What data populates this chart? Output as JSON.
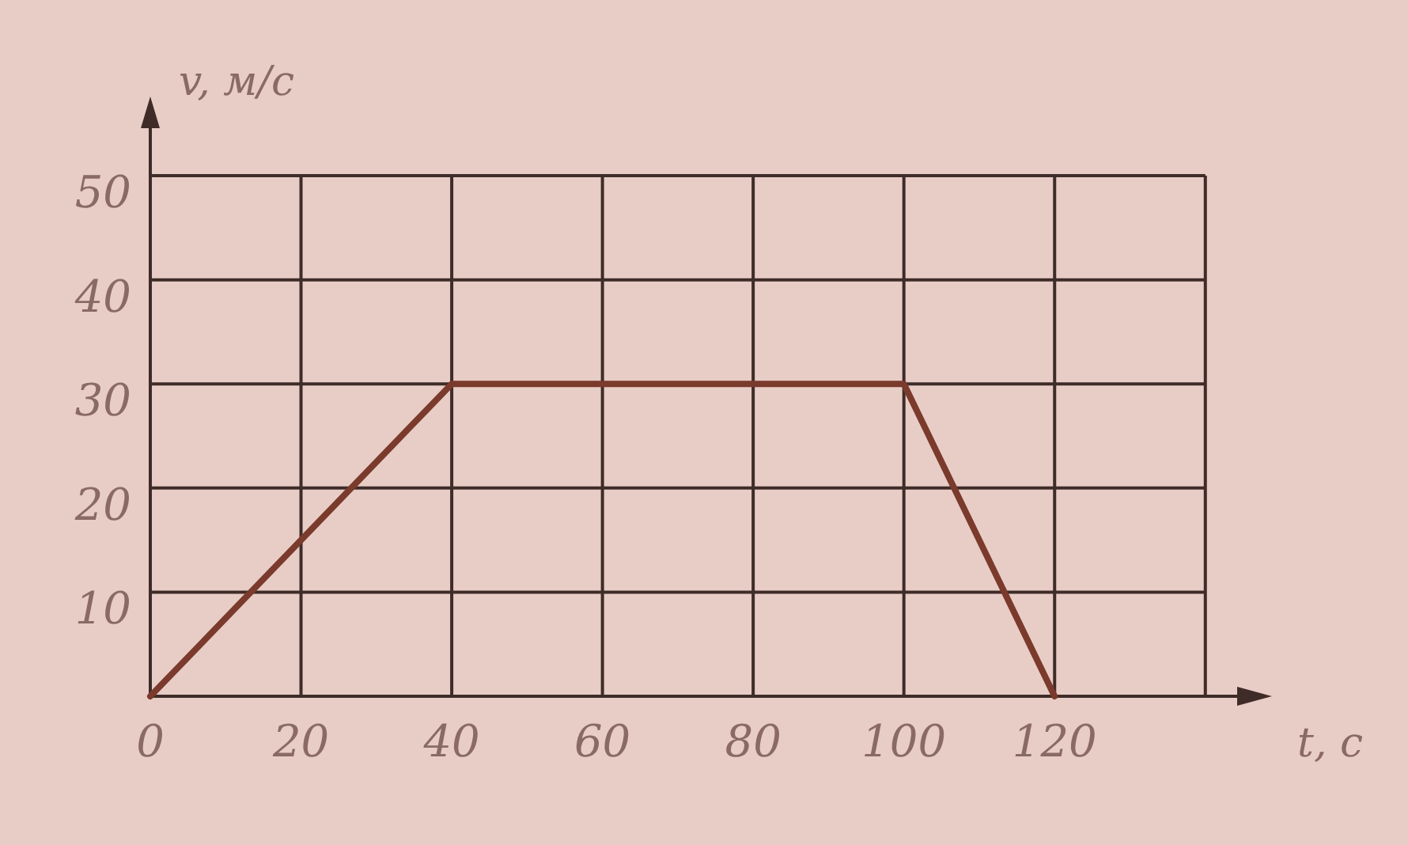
{
  "chart_data": {
    "type": "line",
    "xlabel": "t, с",
    "ylabel": "v, м/с",
    "x": [
      0,
      40,
      100,
      120
    ],
    "series": [
      {
        "color": "#7a3a2c",
        "values": [
          0,
          30,
          30,
          0
        ]
      }
    ],
    "xlim": [
      0,
      148
    ],
    "ylim": [
      0,
      57
    ],
    "xticks": [
      0,
      20,
      40,
      60,
      80,
      100,
      120,
      {
        "value": 140,
        "label": null
      }
    ],
    "yticks": [
      10,
      20,
      30,
      40,
      50
    ],
    "grid": true,
    "marker": "none",
    "line_style": "solid"
  }
}
